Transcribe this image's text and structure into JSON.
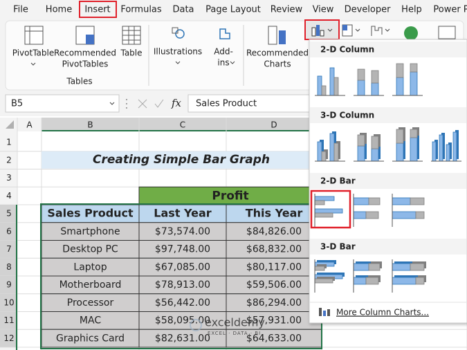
{
  "menu": [
    "File",
    "Home",
    "Insert",
    "Formulas",
    "Data",
    "Page Layout",
    "Review",
    "View",
    "Developer",
    "Help",
    "Power P"
  ],
  "ribbon": {
    "buttons": [
      {
        "lines": [
          "PivotTable"
        ]
      },
      {
        "lines": [
          "Recommended",
          "PivotTables"
        ]
      },
      {
        "lines": [
          "Table"
        ]
      },
      {
        "lines": [
          "Illustrations"
        ]
      },
      {
        "lines": [
          "Add-",
          "ins"
        ]
      },
      {
        "lines": [
          "Recommended",
          "Charts"
        ]
      }
    ],
    "group_label": "Tables"
  },
  "formula_bar": {
    "name_box": "B5",
    "fx": "fx",
    "content": "Sales Product"
  },
  "sheet": {
    "columns": [
      "A",
      "B",
      "C",
      "D"
    ],
    "rows": [
      "1",
      "2",
      "3",
      "4",
      "5",
      "6",
      "7",
      "8",
      "9",
      "10",
      "11",
      "12"
    ],
    "title": "Creating Simple Bar Graph",
    "group_header": "Profit",
    "headers": [
      "Sales Product",
      "Last Year",
      "This Year"
    ],
    "data": [
      [
        "Smartphone",
        "$73,574.00",
        "$84,826.00"
      ],
      [
        "Desktop PC",
        "$97,748.00",
        "$68,832.00"
      ],
      [
        "Laptop",
        "$67,085.00",
        "$80,117.00"
      ],
      [
        "Motherboard",
        "$78,913.00",
        "$59,506.00"
      ],
      [
        "Processor",
        "$56,442.00",
        "$86,294.00"
      ],
      [
        "MAC",
        "$58,095.00",
        "$57,931.00"
      ],
      [
        "Graphics Card",
        "$82,631.00",
        "$64,633.00"
      ]
    ]
  },
  "dropdown": {
    "sections": [
      "2-D Column",
      "3-D Column",
      "2-D Bar",
      "3-D Bar"
    ],
    "more": "More Column Charts..."
  },
  "watermark": {
    "brand": "exceldemy",
    "tagline": "EXCEL · DATA · BI"
  }
}
